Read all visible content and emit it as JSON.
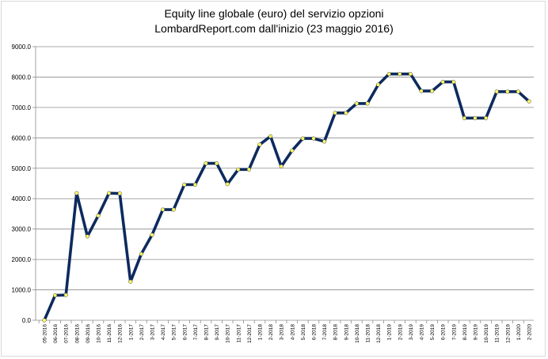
{
  "chart_data": {
    "type": "line",
    "title": "Equity line globale (euro) del servizio opzioni",
    "subtitle": "LombardReport.com dall'inizio (23 maggio 2016)",
    "xlabel": "",
    "ylabel": "",
    "ylim": [
      0,
      9000
    ],
    "yticks": [
      "0.0",
      "1000.0",
      "2000.0",
      "3000.0",
      "4000.0",
      "5000.0",
      "6000.0",
      "7000.0",
      "8000.0",
      "9000.0"
    ],
    "grid": true,
    "legend": "none",
    "categories": [
      "05-2016",
      "06-2016",
      "07-2016",
      "08-2016",
      "09-2016",
      "10-2016",
      "11-2016",
      "12-2016",
      "1-2017",
      "2-2017",
      "3-2017",
      "4-2017",
      "5-2017",
      "6-2017",
      "7-2017",
      "8-2017",
      "9-2017",
      "10-2017",
      "11-2017",
      "12-2017",
      "1-2018",
      "2-2018",
      "3-2018",
      "4-2018",
      "5-2018",
      "6-2018",
      "7-2018",
      "8-2018",
      "9-2018",
      "10-2018",
      "11-2018",
      "12-2018",
      "1-2019",
      "2-2019",
      "3-2019",
      "4-2019",
      "5-2019",
      "6-2019",
      "7-2019",
      "8-2019",
      "9-2019",
      "10-2019",
      "11-2019",
      "12-2019",
      "1-2020",
      "2-2020"
    ],
    "series": [
      {
        "values": [
          0,
          820,
          830,
          4180,
          2760,
          3440,
          4180,
          4170,
          1270,
          2180,
          2810,
          3640,
          3640,
          4460,
          4460,
          5160,
          5160,
          4480,
          4960,
          4960,
          5780,
          6050,
          5060,
          5580,
          5980,
          5980,
          5880,
          6820,
          6820,
          7130,
          7130,
          7750,
          8100,
          8100,
          8100,
          7540,
          7540,
          7840,
          7840,
          6650,
          6650,
          6650,
          7520,
          7520,
          7520,
          7200
        ],
        "line_color": "#0d2a5e",
        "marker_color": "#ffff66"
      }
    ]
  }
}
